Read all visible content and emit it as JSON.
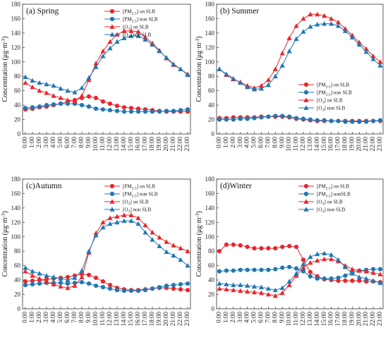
{
  "colors": {
    "on_slb": "#e8262b",
    "non_slb": "#1f77b4"
  },
  "common": {
    "ylabel_prefix": "Concentration (",
    "ylabel_unit_main": "μg·m",
    "ylabel_unit_sup": "-3",
    "ylabel_suffix": ")",
    "categories": [
      "0:00",
      "1:00",
      "2:00",
      "3:00",
      "4:00",
      "5:00",
      "6:00",
      "7:00",
      "8:00",
      "9:00",
      "10:00",
      "11:00",
      "12:00",
      "13:00",
      "14:00",
      "15:00",
      "16:00",
      "17:00",
      "18:00",
      "19:00",
      "20:00",
      "21:00",
      "22:00",
      "23:00"
    ],
    "yticks": [
      "0",
      "20",
      "40",
      "60",
      "80",
      "100",
      "120",
      "140",
      "160",
      "180"
    ]
  },
  "chart_data": [
    {
      "type": "line",
      "title": "(a) Spring",
      "ylim": [
        0,
        180
      ],
      "legend": "top-right",
      "series": [
        {
          "name": "[PM2.5] on SLB",
          "marker": "circle",
          "line": "on_slb",
          "values": [
            34,
            35,
            37,
            38,
            40,
            42,
            45,
            47,
            50,
            52,
            50,
            45,
            42,
            39,
            37,
            36,
            35,
            34,
            33,
            32,
            31,
            31,
            31,
            31
          ]
        },
        {
          "name": "[PM2.5] non SLB",
          "marker": "circle",
          "line": "non_slb",
          "values": [
            36,
            37,
            38,
            40,
            41,
            42,
            42,
            42,
            40,
            38,
            35,
            34,
            33,
            32,
            31,
            31,
            31,
            31,
            31,
            31,
            32,
            32,
            33,
            34
          ]
        },
        {
          "name": "[O3] on SLB",
          "marker": "triangle",
          "line": "on_slb",
          "values": [
            71,
            65,
            60,
            57,
            53,
            50,
            47,
            46,
            53,
            75,
            98,
            115,
            128,
            138,
            143,
            143,
            142,
            134,
            126,
            116,
            105,
            96,
            90,
            83
          ]
        },
        {
          "name": "[O3] non SLB",
          "marker": "triangle",
          "line": "non_slb",
          "values": [
            79,
            74,
            71,
            69,
            67,
            63,
            60,
            58,
            64,
            78,
            93,
            108,
            119,
            128,
            133,
            136,
            136,
            131,
            124,
            115,
            106,
            97,
            90,
            82
          ]
        }
      ]
    },
    {
      "type": "line",
      "title": "(b) Summer",
      "ylim": [
        0,
        180
      ],
      "legend": "center-right",
      "series": [
        {
          "name": "[PM2.5] on SLB",
          "marker": "circle",
          "line": "on_slb",
          "values": [
            22,
            22,
            23,
            23,
            23,
            23,
            24,
            24,
            24,
            24,
            23,
            21,
            20,
            19,
            18,
            18,
            18,
            18,
            18,
            18,
            18,
            18,
            18,
            18
          ]
        },
        {
          "name": "[PM2.5] non SLB",
          "marker": "circle",
          "line": "non_slb",
          "values": [
            20,
            20,
            20,
            21,
            21,
            22,
            23,
            24,
            25,
            25,
            24,
            22,
            21,
            20,
            19,
            19,
            18,
            18,
            17,
            17,
            17,
            17,
            18,
            19
          ]
        },
        {
          "name": "[O3] on SLB",
          "marker": "triangle",
          "line": "on_slb",
          "values": [
            90,
            82,
            76,
            72,
            67,
            64,
            67,
            75,
            90,
            112,
            133,
            150,
            160,
            166,
            166,
            164,
            160,
            155,
            146,
            137,
            127,
            118,
            108,
            100
          ]
        },
        {
          "name": "[O3] non SLB",
          "marker": "triangle",
          "line": "non_slb",
          "values": [
            90,
            83,
            77,
            71,
            65,
            62,
            63,
            68,
            80,
            95,
            115,
            132,
            142,
            149,
            152,
            153,
            153,
            150,
            143,
            134,
            124,
            114,
            104,
            95
          ]
        }
      ]
    },
    {
      "type": "line",
      "title": "(c)Autumn",
      "ylim": [
        0,
        180
      ],
      "legend": "top-right",
      "series": [
        {
          "name": "[PM2.5] on SLB",
          "marker": "circle",
          "line": "on_slb",
          "values": [
            38,
            39,
            40,
            41,
            42,
            43,
            44,
            46,
            48,
            47,
            43,
            38,
            33,
            29,
            27,
            26,
            26,
            27,
            28,
            29,
            29,
            28,
            27,
            26
          ]
        },
        {
          "name": "[PM2.5] non SLB",
          "marker": "circle",
          "line": "non_slb",
          "values": [
            33,
            34,
            35,
            36,
            36,
            36,
            35,
            36,
            37,
            35,
            32,
            30,
            28,
            26,
            25,
            25,
            25,
            26,
            28,
            30,
            32,
            33,
            34,
            35
          ]
        },
        {
          "name": "[O3] on SLB",
          "marker": "triangle",
          "line": "on_slb",
          "values": [
            52,
            46,
            42,
            37,
            34,
            31,
            29,
            32,
            44,
            78,
            105,
            120,
            126,
            128,
            130,
            130,
            126,
            116,
            106,
            99,
            93,
            88,
            84,
            80
          ]
        },
        {
          "name": "[O3] non SLB",
          "marker": "triangle",
          "line": "non_slb",
          "values": [
            57,
            52,
            49,
            46,
            44,
            42,
            40,
            43,
            53,
            80,
            102,
            113,
            118,
            120,
            122,
            122,
            118,
            106,
            96,
            87,
            79,
            74,
            68,
            60
          ]
        }
      ]
    },
    {
      "type": "line",
      "title": "(d)Winter",
      "ylim": [
        0,
        180
      ],
      "legend": "top-right",
      "series": [
        {
          "name": "[PM2.5] on SLB",
          "marker": "circle",
          "line": "on_slb",
          "values": [
            80,
            89,
            89,
            88,
            86,
            84,
            84,
            84,
            84,
            86,
            87,
            86,
            68,
            51,
            45,
            41,
            40,
            39,
            39,
            39,
            39,
            38,
            38,
            37
          ]
        },
        {
          "name": "[PM2.5] nonSLB",
          "marker": "circle",
          "line": "non_slb",
          "values": [
            52,
            53,
            53,
            54,
            54,
            54,
            54,
            54,
            55,
            57,
            58,
            56,
            52,
            45,
            42,
            42,
            42,
            43,
            46,
            50,
            53,
            54,
            55,
            55
          ]
        },
        {
          "name": "[O3] on SLB",
          "marker": "triangle",
          "line": "on_slb",
          "values": [
            28,
            27,
            26,
            25,
            24,
            23,
            22,
            20,
            18,
            22,
            33,
            46,
            57,
            64,
            67,
            69,
            69,
            66,
            60,
            55,
            53,
            52,
            50,
            48
          ]
        },
        {
          "name": "[O3] non SLB",
          "marker": "triangle",
          "line": "non_slb",
          "values": [
            35,
            34,
            33,
            33,
            32,
            31,
            30,
            28,
            26,
            29,
            38,
            49,
            62,
            72,
            76,
            77,
            75,
            68,
            58,
            49,
            44,
            42,
            39,
            36
          ]
        }
      ]
    }
  ]
}
